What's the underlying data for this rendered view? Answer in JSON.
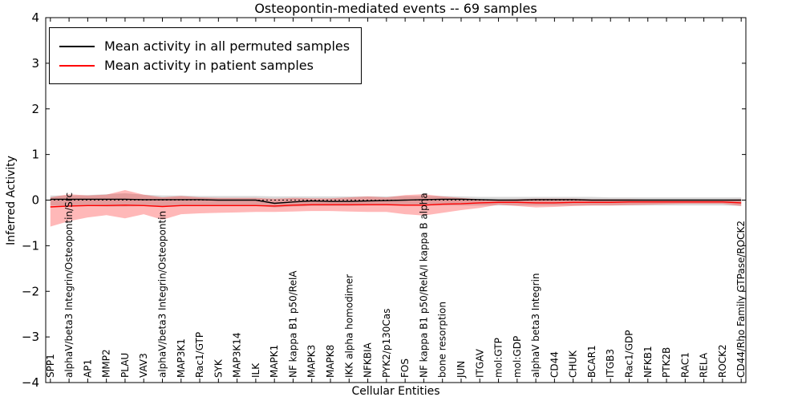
{
  "title": "Osteopontin-mediated events -- 69 samples",
  "legend": [
    {
      "label": "Mean activity in all permuted samples",
      "color": "#000000"
    },
    {
      "label": "Mean activity in patient samples",
      "color": "#ff0000"
    }
  ],
  "chart_data": {
    "type": "line",
    "title": "Osteopontin-mediated events -- 69 samples",
    "xlabel": "Cellular Entities",
    "ylabel": "Inferred Activity",
    "ylim": [
      -4,
      4
    ],
    "yticks": [
      4,
      3,
      2,
      1,
      0,
      -1,
      -2,
      -3,
      -4
    ],
    "zero_line_style": "dotted",
    "legend_position": "upper-left",
    "grid": false,
    "categories": [
      "SPP1",
      "alphaV/beta3 Integrin/Osteopontin/Src",
      "AP1",
      "MMP2",
      "PLAU",
      "VAV3",
      "alphaV/beta3 Integrin/Osteopontin",
      "MAP3K1",
      "Rac1/GTP",
      "SYK",
      "MAP3K14",
      "ILK",
      "MAPK1",
      "NF kappa B1 p50/RelA",
      "MAPK3",
      "MAPK8",
      "IKK alpha homodimer",
      "NFKBIA",
      "PYK2/p130Cas",
      "FOS",
      "NF kappa B1 p50/RelA/I kappa B alpha",
      "bone resorption",
      "JUN",
      "ITGAV",
      "mol:GTP",
      "mol:GDP",
      "alphaV beta3 Integrin",
      "CD44",
      "CHUK",
      "BCAR1",
      "ITGB3",
      "Rac1/GDP",
      "NFKB1",
      "PTK2B",
      "RAC1",
      "RELA",
      "ROCK2",
      "CD44/Rho Family GTPase/ROCK2"
    ],
    "series": [
      {
        "name": "Mean activity in all permuted samples",
        "color": "#000000",
        "band_color": "rgba(0,0,0,0.15)",
        "values": [
          0.02,
          0.02,
          0.02,
          0.02,
          0.02,
          0.01,
          0.01,
          0.01,
          0.01,
          0.0,
          0.0,
          0.0,
          -0.07,
          -0.04,
          -0.02,
          -0.03,
          -0.03,
          -0.02,
          -0.01,
          0.0,
          0.01,
          0.02,
          0.02,
          0.01,
          0.0,
          0.0,
          0.01,
          0.01,
          0.01,
          0.0,
          0.0,
          0.0,
          0.0,
          0.0,
          0.0,
          0.0,
          0.0,
          0.0
        ],
        "band_upper": [
          0.1,
          0.1,
          0.11,
          0.13,
          0.15,
          0.12,
          0.1,
          0.1,
          0.09,
          0.09,
          0.09,
          0.09,
          0.08,
          0.08,
          0.08,
          0.08,
          0.08,
          0.08,
          0.08,
          0.09,
          0.09,
          0.09,
          0.08,
          0.07,
          0.07,
          0.07,
          0.07,
          0.07,
          0.07,
          0.07,
          0.06,
          0.06,
          0.06,
          0.06,
          0.06,
          0.06,
          0.06,
          0.06
        ],
        "band_lower": [
          -0.12,
          -0.13,
          -0.13,
          -0.14,
          -0.14,
          -0.13,
          -0.13,
          -0.12,
          -0.12,
          -0.12,
          -0.12,
          -0.12,
          -0.16,
          -0.14,
          -0.13,
          -0.13,
          -0.13,
          -0.12,
          -0.12,
          -0.12,
          -0.12,
          -0.12,
          -0.12,
          -0.12,
          -0.12,
          -0.12,
          -0.12,
          -0.12,
          -0.12,
          -0.12,
          -0.12,
          -0.12,
          -0.12,
          -0.12,
          -0.12,
          -0.12,
          -0.12,
          -0.13
        ]
      },
      {
        "name": "Mean activity in patient samples",
        "color": "#ff0000",
        "band_color": "rgba(255,0,0,0.28)",
        "values": [
          -0.15,
          -0.13,
          -0.12,
          -0.12,
          -0.11,
          -0.12,
          -0.14,
          -0.12,
          -0.12,
          -0.12,
          -0.12,
          -0.12,
          -0.13,
          -0.11,
          -0.1,
          -0.1,
          -0.1,
          -0.1,
          -0.1,
          -0.11,
          -0.11,
          -0.09,
          -0.08,
          -0.06,
          -0.05,
          -0.05,
          -0.06,
          -0.06,
          -0.05,
          -0.05,
          -0.05,
          -0.04,
          -0.04,
          -0.04,
          -0.04,
          -0.04,
          -0.04,
          -0.06
        ],
        "band_upper": [
          0.06,
          0.13,
          0.1,
          0.12,
          0.22,
          0.12,
          0.06,
          0.09,
          0.06,
          0.05,
          0.05,
          0.05,
          0.03,
          0.05,
          0.04,
          0.04,
          0.06,
          0.08,
          0.06,
          0.11,
          0.13,
          0.08,
          0.05,
          0.02,
          0.01,
          0.02,
          0.03,
          0.03,
          0.03,
          0.02,
          0.02,
          0.02,
          0.01,
          0.01,
          0.01,
          0.01,
          0.01,
          0.02
        ],
        "band_lower": [
          -0.58,
          -0.46,
          -0.38,
          -0.33,
          -0.4,
          -0.31,
          -0.43,
          -0.31,
          -0.29,
          -0.28,
          -0.27,
          -0.26,
          -0.26,
          -0.25,
          -0.24,
          -0.24,
          -0.25,
          -0.26,
          -0.26,
          -0.31,
          -0.34,
          -0.28,
          -0.22,
          -0.17,
          -0.1,
          -0.13,
          -0.16,
          -0.15,
          -0.13,
          -0.12,
          -0.12,
          -0.11,
          -0.1,
          -0.09,
          -0.08,
          -0.08,
          -0.08,
          -0.13
        ]
      }
    ]
  }
}
